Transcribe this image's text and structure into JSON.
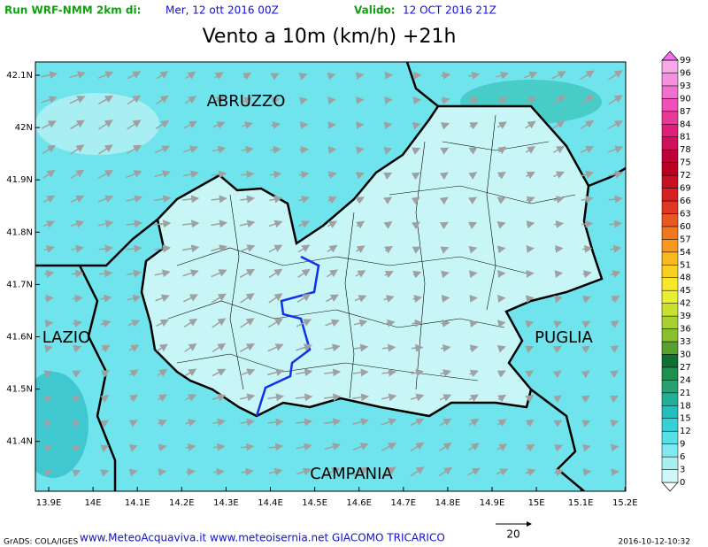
{
  "header": {
    "run_label": "Run WRF-NMM 2km di:",
    "run_date": "Mer, 12 ott 2016 00Z",
    "valid_label": "Valido:",
    "valid_date": "12 OCT 2016 21Z"
  },
  "title": "Vento a 10m (km/h) +21h",
  "map": {
    "regions": [
      "ABRUZZO",
      "LAZIO",
      "PUGLIA",
      "CAMPANIA"
    ],
    "lat_labels": [
      "42.1N",
      "42N",
      "41.9N",
      "41.8N",
      "41.7N",
      "41.6N",
      "41.5N",
      "41.4N"
    ],
    "lon_labels": [
      "13.9E",
      "14E",
      "14.1E",
      "14.2E",
      "14.3E",
      "14.4E",
      "14.5E",
      "14.6E",
      "14.7E",
      "14.8E",
      "14.9E",
      "15E",
      "15.1E",
      "15.2E"
    ]
  },
  "colorbar": {
    "levels": [
      0,
      3,
      6,
      9,
      12,
      15,
      18,
      21,
      24,
      27,
      30,
      33,
      36,
      39,
      42,
      45,
      48,
      51,
      54,
      57,
      60,
      63,
      66,
      69,
      72,
      75,
      78,
      81,
      84,
      87,
      90,
      93,
      96,
      99
    ],
    "colors": [
      "#d0f8f8",
      "#a8f0f0",
      "#80e8f0",
      "#58e0e8",
      "#38d0d8",
      "#20c0c0",
      "#20b098",
      "#28a070",
      "#209050",
      "#107030",
      "#58a030",
      "#88c030",
      "#a8d030",
      "#c8e030",
      "#e8f030",
      "#f8e828",
      "#f8d020",
      "#f8b820",
      "#f89820",
      "#f07820",
      "#e85820",
      "#e03820",
      "#d82020",
      "#c81020",
      "#b80020",
      "#c00038",
      "#d01058",
      "#e02078",
      "#e83898",
      "#f050b8",
      "#f070d0",
      "#f890e0",
      "#f8a8e8",
      "#f070f0"
    ]
  },
  "footer": {
    "credit": "GrADS: COLA/IGES",
    "sites": "www.MeteoAcquaviva.it www.meteoisernia.net GIACOMO TRICARICO",
    "vector_scale": "20",
    "timestamp": "2016-10-12-10:32"
  }
}
